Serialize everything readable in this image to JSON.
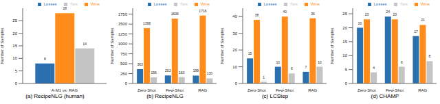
{
  "chart_data": [
    {
      "type": "bar",
      "title": "(a) RecipeNLG (human)",
      "y_label": "Number of Samples",
      "categories": [
        "A-M1 vs. RAG"
      ],
      "series": [
        {
          "name": "Losses",
          "color": "#2a6fb0",
          "values": [
            8
          ]
        },
        {
          "name": "Wins",
          "color": "#ff8c1a",
          "values": [
            28
          ]
        },
        {
          "name": "Ties",
          "color": "#c4c4c4",
          "values": [
            14
          ]
        }
      ],
      "ylim": [
        0,
        30
      ],
      "yticks": [
        0,
        5,
        10,
        15,
        20,
        25
      ],
      "legend": "upper right",
      "data_labels": true
    },
    {
      "type": "bar",
      "title": "(b) RecipeNLG",
      "y_label": "Number of Samples",
      "categories": [
        "Zero-Shot",
        "Few-Shot",
        "RAG"
      ],
      "series": [
        {
          "name": "Losses",
          "color": "#2a6fb0",
          "values": [
            363,
            203,
            199
          ]
        },
        {
          "name": "Wins",
          "color": "#ff8c1a",
          "values": [
            1398,
            1636,
            1716
          ]
        },
        {
          "name": "Ties",
          "color": "#c4c4c4",
          "values": [
            156,
            160,
            130
          ]
        }
      ],
      "ylim": [
        0,
        1900
      ],
      "yticks": [
        0,
        250,
        500,
        750,
        1000,
        1250,
        1500,
        1750
      ],
      "legend": "upper right",
      "data_labels": true
    },
    {
      "type": "bar",
      "title": "(c) LCStep",
      "y_label": "Number of Samples",
      "categories": [
        "Zero-Shot",
        "Few-Shot",
        "RAG"
      ],
      "series": [
        {
          "name": "Losses",
          "color": "#2a6fb0",
          "values": [
            15,
            10,
            7
          ]
        },
        {
          "name": "Wins",
          "color": "#ff8c1a",
          "values": [
            38,
            40,
            39
          ]
        },
        {
          "name": "Ties",
          "color": "#c4c4c4",
          "values": [
            1,
            6,
            10
          ]
        }
      ],
      "ylim": [
        0,
        45
      ],
      "yticks": [
        0,
        10,
        20,
        30,
        40
      ],
      "legend": "upper right",
      "data_labels": true
    },
    {
      "type": "bar",
      "title": "(d) CHAMP",
      "y_label": "Number of Samples",
      "categories": [
        "Zero-Shot",
        "Few-Shot",
        "RAG"
      ],
      "series": [
        {
          "name": "Losses",
          "color": "#2a6fb0",
          "values": [
            20,
            24,
            17
          ]
        },
        {
          "name": "Wins",
          "color": "#ff8c1a",
          "values": [
            23,
            23,
            21
          ]
        },
        {
          "name": "Ties",
          "color": "#c4c4c4",
          "values": [
            4,
            6,
            8
          ]
        }
      ],
      "ylim": [
        0,
        27
      ],
      "yticks": [
        0,
        5,
        10,
        15,
        20,
        25
      ],
      "legend": "upper right",
      "data_labels": true
    }
  ]
}
